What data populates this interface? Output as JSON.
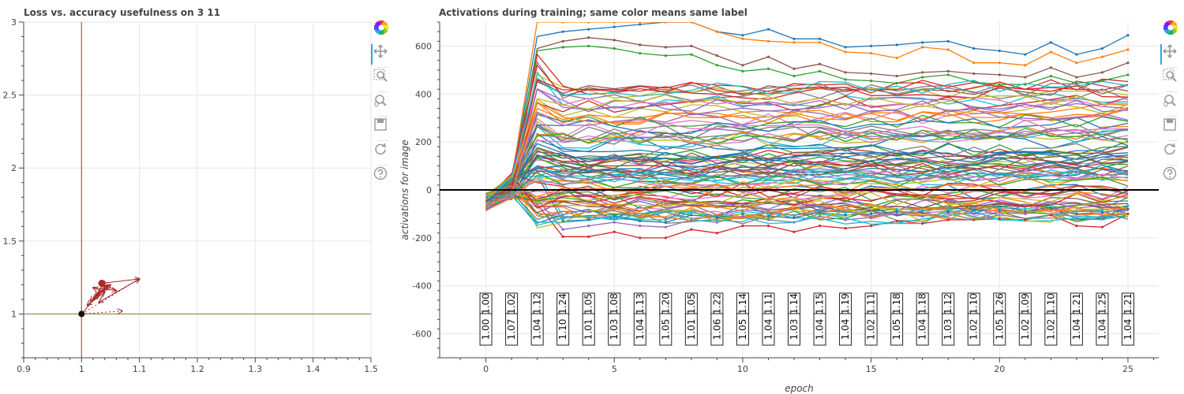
{
  "toolbar": {
    "icons": [
      "bokeh-logo-icon",
      "pan-icon",
      "box-zoom-icon",
      "wheel-zoom-icon",
      "save-icon",
      "reset-icon",
      "help-icon"
    ]
  },
  "colors": {
    "vertical_line": "#c0504d",
    "horizontal_line": "#8b8b3c",
    "loss_arrows": "#a52a2a",
    "zero_line": "#000000",
    "palette": [
      "#1f77b4",
      "#ff7f0e",
      "#2ca02c",
      "#d62728",
      "#9467bd",
      "#8c564b",
      "#e377c2",
      "#7f7f7f",
      "#bcbd22",
      "#17becf"
    ]
  },
  "chart_data": [
    {
      "id": "left",
      "type": "scatter",
      "title": "Loss vs. accuracy usefulness on 3 11",
      "xlim": [
        0.9,
        1.5
      ],
      "ylim": [
        0.7,
        3.0
      ],
      "x_ticks": [
        "0.9",
        "1",
        "1.1",
        "1.2",
        "1.3",
        "1.4",
        "1.5"
      ],
      "y_ticks": [
        "1",
        "1.5",
        "2",
        "2.5",
        "3"
      ],
      "vline_x": 1.0,
      "hline_y": 1.0,
      "origin_point": [
        1.0,
        1.0
      ],
      "highlight_point": [
        1.035,
        1.21
      ],
      "arrow_path": [
        [
          1.0,
          1.0
        ],
        [
          1.03,
          1.14
        ],
        [
          1.045,
          1.19
        ],
        [
          1.02,
          1.1
        ],
        [
          1.04,
          1.22
        ],
        [
          1.025,
          1.12
        ],
        [
          1.05,
          1.2
        ],
        [
          1.01,
          1.06
        ],
        [
          1.04,
          1.15
        ],
        [
          1.02,
          1.18
        ],
        [
          1.06,
          1.16
        ],
        [
          1.035,
          1.21
        ],
        [
          1.1,
          1.24
        ],
        [
          1.03,
          1.08
        ],
        [
          1.045,
          1.2
        ],
        [
          1.015,
          1.09
        ]
      ],
      "dotted_arrows": [
        [
          [
            1.0,
            1.0
          ],
          [
            1.07,
            1.02
          ]
        ],
        [
          [
            1.0,
            1.0
          ],
          [
            1.1,
            1.24
          ]
        ]
      ],
      "grid": true
    },
    {
      "id": "right",
      "type": "line",
      "title": "Activations during training; same color means same label",
      "xlabel": "epoch",
      "ylabel": "activations for image",
      "xlim": [
        -1.8,
        26.2
      ],
      "ylim": [
        -700,
        700
      ],
      "x_ticks": [
        "0",
        "5",
        "10",
        "15",
        "20",
        "25"
      ],
      "y_ticks": [
        "-600",
        "-400",
        "-200",
        "0",
        "200",
        "400",
        "600"
      ],
      "zero_line": 0,
      "epochs": [
        0,
        1,
        2,
        3,
        4,
        5,
        6,
        7,
        8,
        9,
        10,
        11,
        12,
        13,
        14,
        15,
        16,
        17,
        18,
        19,
        20,
        21,
        22,
        23,
        24,
        25
      ],
      "selected_series": [
        {
          "color": "#1f77b4",
          "values": [
            -20,
            40,
            640,
            660,
            670,
            680,
            690,
            700,
            700,
            660,
            645,
            670,
            630,
            630,
            595,
            600,
            605,
            615,
            620,
            590,
            580,
            565,
            615,
            565,
            590,
            645
          ]
        },
        {
          "color": "#ff7f0e",
          "values": [
            -25,
            40,
            700,
            700,
            700,
            700,
            700,
            700,
            700,
            660,
            630,
            620,
            615,
            615,
            575,
            570,
            550,
            595,
            585,
            530,
            530,
            520,
            575,
            530,
            555,
            585
          ]
        },
        {
          "color": "#8c564b",
          "values": [
            -15,
            30,
            590,
            620,
            635,
            625,
            605,
            595,
            600,
            560,
            520,
            555,
            505,
            525,
            490,
            485,
            475,
            490,
            495,
            485,
            480,
            470,
            510,
            470,
            490,
            530
          ]
        },
        {
          "color": "#2ca02c",
          "values": [
            -20,
            35,
            580,
            595,
            600,
            590,
            570,
            560,
            565,
            520,
            495,
            505,
            475,
            495,
            460,
            455,
            445,
            470,
            480,
            450,
            440,
            440,
            475,
            445,
            455,
            480
          ]
        },
        {
          "color": "#d62728",
          "values": [
            -30,
            20,
            -60,
            -195,
            -195,
            -175,
            -200,
            -200,
            -165,
            -180,
            -150,
            -150,
            -175,
            -150,
            -160,
            -150,
            -130,
            -140,
            -125,
            -125,
            -120,
            -125,
            -105,
            -150,
            -155,
            -100
          ]
        },
        {
          "color": "#9467bd",
          "values": [
            -45,
            -25,
            -40,
            -165,
            -150,
            -135,
            -150,
            -155,
            -125,
            -135,
            -110,
            -125,
            -135,
            -110,
            -125,
            -115,
            -100,
            -110,
            -95,
            -100,
            -95,
            -100,
            -80,
            -120,
            -110,
            -80
          ]
        },
        {
          "color": "#17becf",
          "values": [
            -40,
            -40,
            80,
            -110,
            -115,
            -120,
            -125,
            -125,
            -95,
            -110,
            -90,
            -100,
            -105,
            -85,
            -95,
            -90,
            -80,
            -85,
            -80,
            -75,
            -75,
            -80,
            -65,
            -90,
            -85,
            -65
          ]
        },
        {
          "color": "#1f77b4",
          "values": [
            -40,
            -38,
            60,
            -130,
            -125,
            -110,
            -130,
            -135,
            -105,
            -115,
            -100,
            -110,
            -115,
            -95,
            -105,
            -100,
            -90,
            -95,
            -90,
            -85,
            -85,
            -90,
            -75,
            -100,
            -95,
            -80
          ]
        }
      ],
      "series_count": 100,
      "annotations": [
        {
          "epoch": 0,
          "top": "1.00",
          "bottom": "1.00"
        },
        {
          "epoch": 1,
          "top": "1.02",
          "bottom": "1.07"
        },
        {
          "epoch": 2,
          "top": "1.12",
          "bottom": "1.04"
        },
        {
          "epoch": 3,
          "top": "1.24",
          "bottom": "1.10"
        },
        {
          "epoch": 4,
          "top": "1.05",
          "bottom": "1.01"
        },
        {
          "epoch": 5,
          "top": "1.08",
          "bottom": "1.03"
        },
        {
          "epoch": 6,
          "top": "1.13",
          "bottom": "1.04"
        },
        {
          "epoch": 7,
          "top": "1.20",
          "bottom": "1.05"
        },
        {
          "epoch": 8,
          "top": "1.05",
          "bottom": "1.01"
        },
        {
          "epoch": 9,
          "top": "1.22",
          "bottom": "1.06"
        },
        {
          "epoch": 10,
          "top": "1.14",
          "bottom": "1.05"
        },
        {
          "epoch": 11,
          "top": "1.11",
          "bottom": "1.04"
        },
        {
          "epoch": 12,
          "top": "1.14",
          "bottom": "1.03"
        },
        {
          "epoch": 13,
          "top": "1.15",
          "bottom": "1.04"
        },
        {
          "epoch": 14,
          "top": "1.19",
          "bottom": "1.04"
        },
        {
          "epoch": 15,
          "top": "1.11",
          "bottom": "1.02"
        },
        {
          "epoch": 16,
          "top": "1.18",
          "bottom": "1.05"
        },
        {
          "epoch": 17,
          "top": "1.18",
          "bottom": "1.04"
        },
        {
          "epoch": 18,
          "top": "1.12",
          "bottom": "1.03"
        },
        {
          "epoch": 19,
          "top": "1.10",
          "bottom": "1.02"
        },
        {
          "epoch": 20,
          "top": "1.26",
          "bottom": "1.05"
        },
        {
          "epoch": 21,
          "top": "1.09",
          "bottom": "1.02"
        },
        {
          "epoch": 22,
          "top": "1.10",
          "bottom": "1.02"
        },
        {
          "epoch": 23,
          "top": "1.21",
          "bottom": "1.04"
        },
        {
          "epoch": 24,
          "top": "1.25",
          "bottom": "1.04"
        },
        {
          "epoch": 25,
          "top": "1.21",
          "bottom": "1.04"
        }
      ],
      "grid": true
    }
  ]
}
